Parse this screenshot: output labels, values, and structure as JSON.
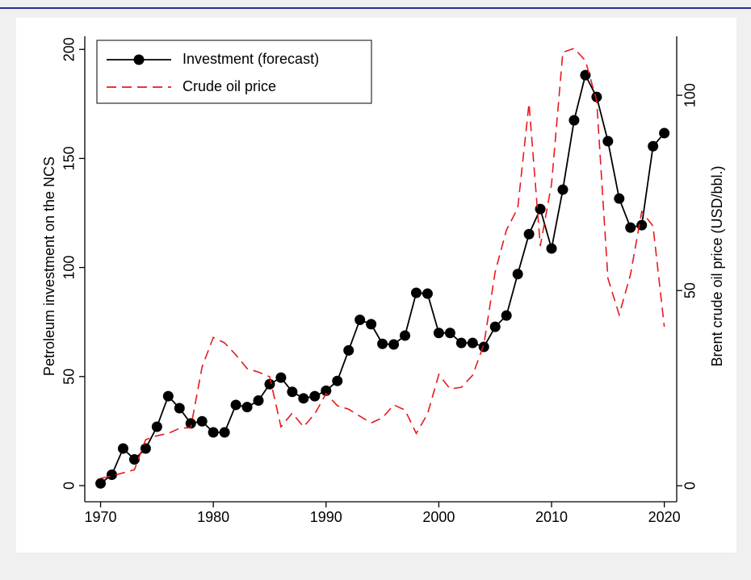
{
  "chart_data": {
    "type": "line",
    "x": [
      1970,
      1971,
      1972,
      1973,
      1974,
      1975,
      1976,
      1977,
      1978,
      1979,
      1980,
      1981,
      1982,
      1983,
      1984,
      1985,
      1986,
      1987,
      1988,
      1989,
      1990,
      1991,
      1992,
      1993,
      1994,
      1995,
      1996,
      1997,
      1998,
      1999,
      2000,
      2001,
      2002,
      2003,
      2004,
      2005,
      2006,
      2007,
      2008,
      2009,
      2010,
      2011,
      2012,
      2013,
      2014,
      2015,
      2016,
      2017,
      2018,
      2019,
      2020
    ],
    "series": [
      {
        "name": "Investment (forecast)",
        "color": "#000000",
        "marker": "circle",
        "dash": "solid",
        "values": [
          1,
          5,
          17,
          12,
          17,
          27,
          41,
          35.5,
          28.5,
          29.5,
          24.4,
          24.4,
          37,
          36,
          39,
          46.5,
          49.5,
          43,
          40,
          41,
          43.5,
          48,
          62,
          76,
          74,
          65,
          64.7,
          68.8,
          88.4,
          88,
          70,
          70,
          65.4,
          65.4,
          63.6,
          72.8,
          78,
          97,
          115.3,
          126.8,
          108.7,
          135.7,
          167.5,
          188.2,
          178.2,
          157.9,
          131.6,
          118.3,
          119.4,
          155.6,
          161.6
        ]
      },
      {
        "name": "Crude oil price",
        "color": "#e8191c",
        "marker": "none",
        "dash": "dashed",
        "axis": "y2",
        "values": [
          1.9,
          2.5,
          3.3,
          4.1,
          11.8,
          12.8,
          13.4,
          14.7,
          14.9,
          30.4,
          38,
          36.6,
          33.5,
          30,
          29.1,
          27.9,
          15.1,
          18.6,
          15.1,
          18.4,
          23.6,
          20.5,
          19.6,
          17.8,
          16.1,
          17.4,
          20.7,
          19.4,
          13.4,
          18.4,
          28.5,
          24.8,
          25.2,
          28.3,
          36.2,
          54.8,
          65.5,
          71.1,
          97.9,
          61.4,
          77.3,
          111,
          112,
          108.9,
          98.6,
          53.1,
          43.8,
          54.1,
          70.2,
          66.5,
          40.7
        ]
      }
    ],
    "ylabel": "Petroleum investment on the NCS",
    "y2label": "Brent crude oil price (USD/bbl.)",
    "xlim": [
      1968.6,
      2021.1
    ],
    "xticks": [
      1970,
      1980,
      1990,
      2000,
      2010,
      2020
    ],
    "ylim": [
      -7.4,
      206
    ],
    "yticks": [
      0,
      50,
      100,
      150,
      200
    ],
    "y2lim": [
      -4.1,
      115.1
    ],
    "y2ticks": [
      0,
      50,
      100
    ],
    "grid": false,
    "legend": "top-left"
  }
}
